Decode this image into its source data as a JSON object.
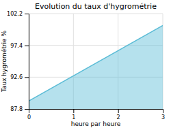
{
  "chart_data": {
    "type": "area",
    "title": "Evolution du taux d'hygrométrie",
    "xlabel": "heure par heure",
    "ylabel": "Taux hygrométrie %",
    "x": [
      0,
      3
    ],
    "series": [
      {
        "values": [
          89.0,
          100.4
        ],
        "color": "#5bbcd6"
      }
    ],
    "xlim": [
      0,
      3
    ],
    "ylim": [
      87.8,
      102.2
    ],
    "xticks": [
      0,
      1,
      2,
      3
    ],
    "yticks": [
      87.8,
      92.6,
      97.4,
      102.2
    ],
    "grid": true
  }
}
